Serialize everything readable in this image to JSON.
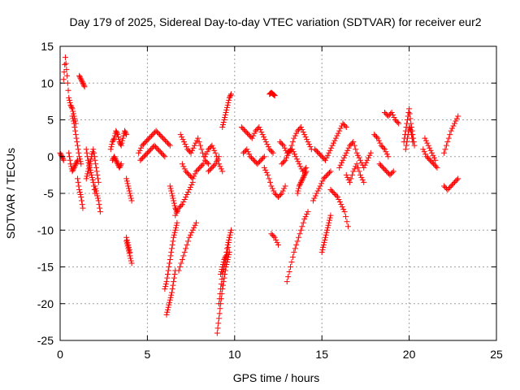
{
  "chart_data": {
    "type": "scatter",
    "title": "Day 179 of 2025, Sidereal Day-to-day VTEC variation (SDTVAR) for receiver eur2",
    "xlabel": "GPS time / hours",
    "ylabel": "SDTVAR / TECUs",
    "xlim": [
      0,
      25
    ],
    "ylim": [
      -25,
      15
    ],
    "xticks": [
      0,
      5,
      10,
      15,
      20,
      25
    ],
    "yticks": [
      -25,
      -20,
      -15,
      -10,
      -5,
      0,
      5,
      10,
      15
    ],
    "grid": true,
    "marker": "+",
    "color": "#ff0000",
    "segments": [
      {
        "x": [
          0.0,
          0.1,
          0.2
        ],
        "y": [
          0.5,
          0.0,
          -0.5
        ]
      },
      {
        "x": [
          0.2,
          0.3,
          0.4,
          0.5,
          0.6,
          0.7,
          0.8,
          0.9
        ],
        "y": [
          10.5,
          13.5,
          11.0,
          8.0,
          7.0,
          6.5,
          5.5,
          4.5
        ]
      },
      {
        "x": [
          0.5,
          0.6,
          0.7,
          0.8,
          0.9,
          1.0
        ],
        "y": [
          0.5,
          -1.0,
          -2.0,
          -1.5,
          -1.0,
          -0.5
        ]
      },
      {
        "x": [
          0.7,
          0.8,
          0.9,
          1.0,
          1.1,
          1.2
        ],
        "y": [
          5.5,
          4.5,
          3.0,
          1.5,
          0.0,
          -1.0
        ]
      },
      {
        "x": [
          1.0,
          1.1,
          1.2,
          1.3
        ],
        "y": [
          -3.0,
          -4.5,
          -5.5,
          -7.0
        ]
      },
      {
        "x": [
          1.1,
          1.2,
          1.3,
          1.4
        ],
        "y": [
          11.0,
          10.5,
          10.0,
          9.5
        ]
      },
      {
        "x": [
          1.5,
          1.6,
          1.7,
          1.8,
          1.9,
          2.0,
          2.1,
          2.2
        ],
        "y": [
          -3.0,
          -2.0,
          -1.0,
          0.0,
          1.0,
          -0.5,
          -2.0,
          -3.5
        ]
      },
      {
        "x": [
          1.5,
          1.6,
          1.7,
          1.8,
          1.9,
          2.0
        ],
        "y": [
          1.0,
          -0.5,
          -1.5,
          -2.5,
          -3.5,
          -5.0
        ]
      },
      {
        "x": [
          2.0,
          2.1,
          2.2,
          2.3
        ],
        "y": [
          -4.0,
          -5.0,
          -6.0,
          -7.5
        ]
      },
      {
        "x": [
          2.9,
          3.0,
          3.1,
          3.2,
          3.3,
          3.4,
          3.5,
          3.6,
          3.7,
          3.8
        ],
        "y": [
          1.0,
          2.0,
          2.5,
          3.5,
          3.0,
          2.0,
          1.5,
          2.5,
          3.5,
          3.0
        ]
      },
      {
        "x": [
          3.0,
          3.1,
          3.2,
          3.3,
          3.4,
          3.5
        ],
        "y": [
          -0.5,
          0.0,
          -0.5,
          -1.0,
          -1.5,
          -1.0
        ]
      },
      {
        "x": [
          3.8,
          3.9,
          4.0,
          4.1
        ],
        "y": [
          -3.0,
          -4.0,
          -5.0,
          -6.0
        ]
      },
      {
        "x": [
          3.8,
          3.9,
          4.0,
          4.1
        ],
        "y": [
          -11.5,
          -12.5,
          -13.5,
          -14.5
        ]
      },
      {
        "x": [
          3.8,
          3.9,
          4.0
        ],
        "y": [
          -11.0,
          -12.0,
          -13.0
        ]
      },
      {
        "x": [
          4.5,
          4.7,
          4.9,
          5.1,
          5.3,
          5.5,
          5.7,
          5.9,
          6.1,
          6.3
        ],
        "y": [
          0.5,
          1.5,
          2.0,
          2.5,
          3.0,
          3.5,
          3.0,
          2.5,
          2.0,
          1.5
        ]
      },
      {
        "x": [
          4.6,
          4.8,
          5.0,
          5.2,
          5.4,
          5.6,
          5.8,
          6.0
        ],
        "y": [
          -0.5,
          0.0,
          0.5,
          1.0,
          1.5,
          1.0,
          0.5,
          0.0
        ]
      },
      {
        "x": [
          6.0,
          6.1,
          6.2,
          6.3,
          6.4,
          6.5,
          6.6,
          6.7
        ],
        "y": [
          -18.0,
          -17.0,
          -15.5,
          -14.0,
          -12.5,
          -11.0,
          -10.0,
          -9.0
        ]
      },
      {
        "x": [
          6.1,
          6.2,
          6.3,
          6.4,
          6.5,
          6.6
        ],
        "y": [
          -21.5,
          -20.5,
          -19.5,
          -18.5,
          -17.0,
          -15.5
        ]
      },
      {
        "x": [
          6.3,
          6.4,
          6.5,
          6.6,
          6.7
        ],
        "y": [
          -4.0,
          -5.0,
          -6.0,
          -7.0,
          -7.5
        ]
      },
      {
        "x": [
          6.8,
          7.0,
          7.2,
          7.4,
          7.6,
          7.8
        ],
        "y": [
          -15.5,
          -14.0,
          -12.5,
          -11.0,
          -10.0,
          -9.0
        ]
      },
      {
        "x": [
          6.6,
          6.8,
          7.0,
          7.2,
          7.4,
          7.6
        ],
        "y": [
          -8.0,
          -7.0,
          -6.5,
          -5.5,
          -4.5,
          -3.5
        ]
      },
      {
        "x": [
          6.9,
          7.1,
          7.3,
          7.5,
          7.7,
          7.9,
          8.1,
          8.3,
          8.5
        ],
        "y": [
          3.0,
          2.0,
          1.0,
          0.5,
          1.5,
          2.5,
          1.0,
          -0.5,
          -1.0
        ]
      },
      {
        "x": [
          7.0,
          7.2,
          7.4,
          7.6,
          7.8,
          8.0,
          8.2
        ],
        "y": [
          -1.0,
          -2.0,
          -2.5,
          -3.0,
          -2.0,
          -1.5,
          -1.0
        ]
      },
      {
        "x": [
          8.3,
          8.5,
          8.7,
          8.9,
          9.1,
          9.3
        ],
        "y": [
          0.0,
          1.0,
          1.5,
          0.5,
          -1.0,
          -2.0
        ]
      },
      {
        "x": [
          8.5,
          8.7,
          8.9,
          9.1
        ],
        "y": [
          -2.0,
          -1.5,
          -1.0,
          0.0
        ]
      },
      {
        "x": [
          9.0,
          9.1,
          9.2,
          9.3,
          9.4,
          9.5,
          9.6,
          9.7
        ],
        "y": [
          -24.0,
          -22.0,
          -20.0,
          -18.0,
          -16.5,
          -15.0,
          -14.0,
          -13.0
        ]
      },
      {
        "x": [
          9.1,
          9.2,
          9.3,
          9.4,
          9.5,
          9.6,
          9.7
        ],
        "y": [
          -20.0,
          -18.0,
          -16.0,
          -15.0,
          -14.0,
          -13.0,
          -11.0
        ]
      },
      {
        "x": [
          9.2,
          9.3,
          9.4,
          9.5,
          9.6,
          9.7,
          9.8
        ],
        "y": [
          -16.0,
          -15.0,
          -14.0,
          -13.5,
          -12.0,
          -11.0,
          -10.0
        ]
      },
      {
        "x": [
          9.3,
          9.4,
          9.5,
          9.6,
          9.7,
          9.8
        ],
        "y": [
          4.0,
          5.0,
          6.0,
          7.0,
          8.0,
          8.5
        ]
      },
      {
        "x": [
          10.4,
          10.6,
          10.8,
          11.0,
          11.2,
          11.4,
          11.6,
          11.8,
          12.0,
          12.2
        ],
        "y": [
          4.0,
          3.5,
          3.0,
          2.5,
          3.5,
          4.0,
          3.0,
          2.0,
          1.0,
          0.5
        ]
      },
      {
        "x": [
          10.5,
          10.7,
          10.9,
          11.1,
          11.3,
          11.5,
          11.7
        ],
        "y": [
          0.5,
          1.0,
          0.0,
          -0.5,
          -1.0,
          -0.5,
          0.0
        ]
      },
      {
        "x": [
          11.7,
          11.9,
          12.1,
          12.3,
          12.5,
          12.7,
          12.9
        ],
        "y": [
          -1.5,
          -2.5,
          -4.0,
          -5.0,
          -5.5,
          -5.0,
          -4.0
        ]
      },
      {
        "x": [
          12.0,
          12.1,
          12.2,
          12.3
        ],
        "y": [
          8.5,
          8.7,
          8.5,
          8.3
        ]
      },
      {
        "x": [
          12.1,
          12.3,
          12.5
        ],
        "y": [
          -10.5,
          -11.0,
          -12.0
        ]
      },
      {
        "x": [
          12.6,
          12.8,
          13.0,
          13.2,
          13.4,
          13.6,
          13.8,
          14.0,
          14.2,
          14.4
        ],
        "y": [
          2.0,
          1.5,
          0.5,
          1.0,
          2.5,
          3.5,
          4.0,
          3.0,
          2.0,
          1.0
        ]
      },
      {
        "x": [
          12.7,
          12.9,
          13.1,
          13.3,
          13.5,
          13.7,
          13.9,
          14.1
        ],
        "y": [
          -1.0,
          -0.5,
          0.5,
          1.0,
          0.0,
          -1.0,
          -2.0,
          -1.5
        ]
      },
      {
        "x": [
          13.0,
          13.2,
          13.4,
          13.6,
          13.8,
          14.0,
          14.2
        ],
        "y": [
          -17.0,
          -15.0,
          -13.0,
          -11.5,
          -10.0,
          -8.5,
          -7.5
        ]
      },
      {
        "x": [
          13.6,
          13.7,
          13.8,
          13.9,
          14.0,
          14.1
        ],
        "y": [
          -5.0,
          -4.0,
          -3.5,
          -3.0,
          -2.5,
          -2.0
        ]
      },
      {
        "x": [
          14.5,
          14.7,
          14.9,
          15.1,
          15.3,
          15.5
        ],
        "y": [
          -6.0,
          -5.0,
          -4.0,
          -3.0,
          -2.5,
          -2.0
        ]
      },
      {
        "x": [
          14.6,
          14.8,
          15.0,
          15.2,
          15.4,
          15.6,
          15.8,
          16.0,
          16.2,
          16.4
        ],
        "y": [
          1.0,
          0.5,
          0.0,
          -0.5,
          0.5,
          1.5,
          2.5,
          3.5,
          4.5,
          4.0
        ]
      },
      {
        "x": [
          15.0,
          15.1,
          15.2,
          15.3,
          15.4,
          15.5
        ],
        "y": [
          -13.0,
          -12.0,
          -11.0,
          -10.0,
          -9.0,
          -8.0
        ]
      },
      {
        "x": [
          15.5,
          15.7,
          15.9,
          16.1,
          16.3,
          16.5
        ],
        "y": [
          -4.5,
          -5.0,
          -5.5,
          -6.5,
          -7.5,
          -9.5
        ]
      },
      {
        "x": [
          16.0,
          16.2,
          16.4,
          16.6,
          16.8,
          17.0,
          17.2,
          17.4,
          17.6,
          17.8
        ],
        "y": [
          -1.5,
          -0.5,
          0.5,
          1.5,
          2.0,
          0.5,
          -0.5,
          -1.5,
          -0.5,
          0.5
        ]
      },
      {
        "x": [
          16.4,
          16.6,
          16.8,
          17.0,
          17.2,
          17.4
        ],
        "y": [
          -2.5,
          -3.5,
          -2.0,
          -1.0,
          -2.5,
          -3.5
        ]
      },
      {
        "x": [
          18.0,
          18.2,
          18.4,
          18.6,
          18.8
        ],
        "y": [
          3.0,
          2.5,
          1.5,
          1.0,
          0.0
        ]
      },
      {
        "x": [
          18.3,
          18.5,
          18.7,
          18.9,
          19.1
        ],
        "y": [
          -1.0,
          -1.5,
          -2.0,
          -2.5,
          -2.0
        ]
      },
      {
        "x": [
          18.6,
          18.8,
          19.0,
          19.2,
          19.4
        ],
        "y": [
          6.0,
          5.5,
          6.0,
          5.0,
          4.5
        ]
      },
      {
        "x": [
          19.7,
          19.8,
          19.9,
          20.0,
          20.1,
          20.2,
          20.3
        ],
        "y": [
          2.0,
          3.5,
          5.0,
          6.5,
          4.5,
          3.0,
          1.5
        ]
      },
      {
        "x": [
          19.8,
          19.9,
          20.0,
          20.1,
          20.2
        ],
        "y": [
          1.0,
          2.5,
          4.0,
          3.5,
          2.0
        ]
      },
      {
        "x": [
          20.8,
          21.0,
          21.2,
          21.4,
          21.6
        ],
        "y": [
          1.0,
          0.0,
          -0.5,
          -1.0,
          -1.5
        ]
      },
      {
        "x": [
          20.9,
          21.1,
          21.3,
          21.5
        ],
        "y": [
          2.5,
          1.5,
          0.5,
          -0.5
        ]
      },
      {
        "x": [
          22.0,
          22.2,
          22.4,
          22.6,
          22.8
        ],
        "y": [
          0.5,
          2.0,
          3.5,
          4.5,
          5.5
        ]
      },
      {
        "x": [
          22.0,
          22.2,
          22.4,
          22.6,
          22.8
        ],
        "y": [
          -4.0,
          -4.5,
          -4.0,
          -3.5,
          -3.0
        ]
      }
    ]
  }
}
